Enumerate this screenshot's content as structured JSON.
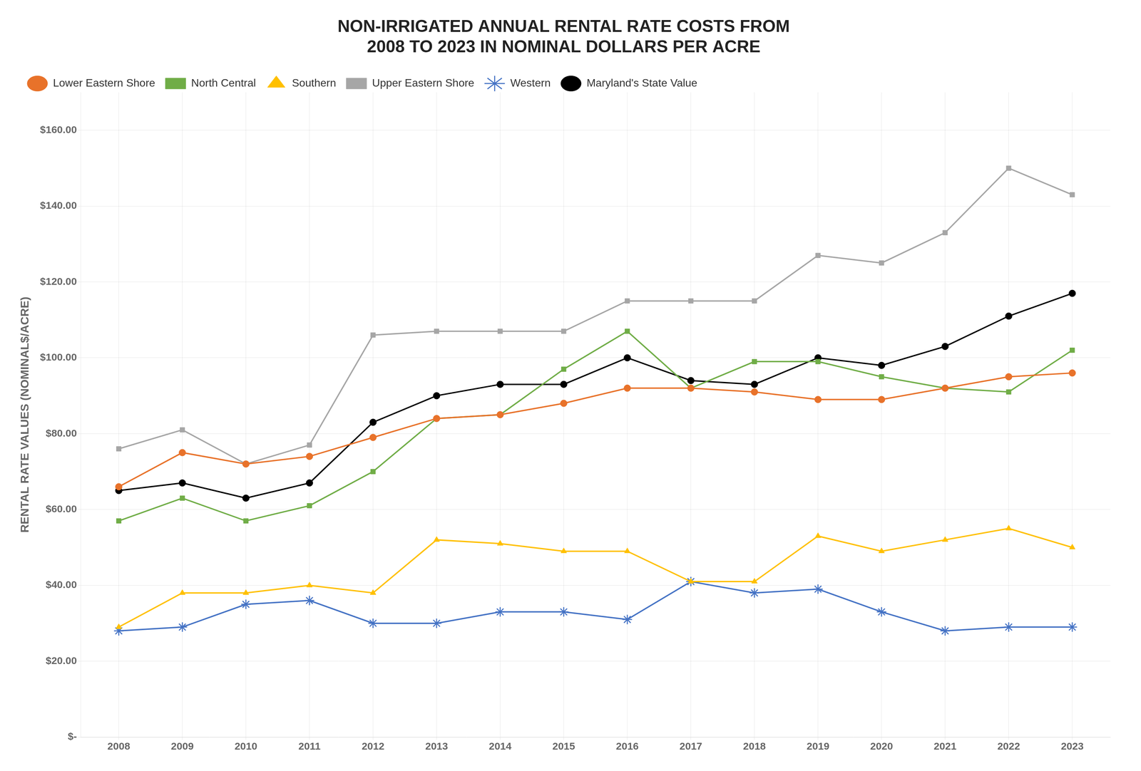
{
  "chart_data": {
    "type": "line",
    "title": "NON-IRRIGATED ANNUAL RENTAL RATE COSTS FROM\n2008 TO 2023 IN NOMINAL DOLLARS PER ACRE",
    "y_label": "RENTAL RATE VALUES (NOMINAL$/ACRE)",
    "x": [
      2008,
      2009,
      2010,
      2011,
      2012,
      2013,
      2014,
      2015,
      2016,
      2017,
      2018,
      2019,
      2020,
      2021,
      2022,
      2023
    ],
    "series": [
      {
        "name": "Lower Eastern Shore",
        "color": "#E8722A",
        "marker": "circle",
        "values": [
          66,
          75,
          72,
          74,
          79,
          84,
          85,
          88,
          92,
          92,
          91,
          89,
          89,
          92,
          95,
          96
        ]
      },
      {
        "name": "North Central",
        "color": "#70AD47",
        "marker": "square",
        "values": [
          57,
          63,
          57,
          61,
          70,
          84,
          85,
          97,
          107,
          92,
          99,
          99,
          95,
          92,
          91,
          102
        ]
      },
      {
        "name": "Southern",
        "color": "#FFC000",
        "marker": "triangle",
        "values": [
          29,
          38,
          38,
          40,
          38,
          52,
          51,
          49,
          49,
          41,
          41,
          53,
          49,
          52,
          55,
          50
        ]
      },
      {
        "name": "Upper Eastern Shore",
        "color": "#A6A6A6",
        "marker": "square",
        "values": [
          76,
          81,
          72,
          77,
          106,
          107,
          107,
          107,
          115,
          115,
          115,
          127,
          125,
          133,
          150,
          143
        ]
      },
      {
        "name": "Western",
        "color": "#4472C4",
        "marker": "star",
        "values": [
          28,
          29,
          35,
          36,
          30,
          30,
          33,
          33,
          31,
          41,
          38,
          39,
          33,
          28,
          29,
          29
        ]
      },
      {
        "name": "Maryland's State Value",
        "color": "#000000",
        "marker": "circle",
        "values": [
          65,
          67,
          63,
          67,
          83,
          90,
          93,
          93,
          100,
          94,
          93,
          100,
          98,
          103,
          111,
          117
        ]
      }
    ],
    "xlim": [
      2007.4,
      2023.6
    ],
    "xticks": [
      2008,
      2009,
      2010,
      2011,
      2012,
      2013,
      2014,
      2015,
      2016,
      2017,
      2018,
      2019,
      2020,
      2021,
      2022,
      2023
    ],
    "ylim": [
      0,
      170
    ],
    "yticks": [
      {
        "value": 0,
        "label": "$-"
      },
      {
        "value": 20,
        "label": "$20.00"
      },
      {
        "value": 40,
        "label": "$40.00"
      },
      {
        "value": 60,
        "label": "$60.00"
      },
      {
        "value": 80,
        "label": "$80.00"
      },
      {
        "value": 100,
        "label": "$100.00"
      },
      {
        "value": 120,
        "label": "$120.00"
      },
      {
        "value": 140,
        "label": "$140.00"
      },
      {
        "value": 160,
        "label": "$160.00"
      }
    ],
    "grid": true,
    "legend": "upper left"
  }
}
